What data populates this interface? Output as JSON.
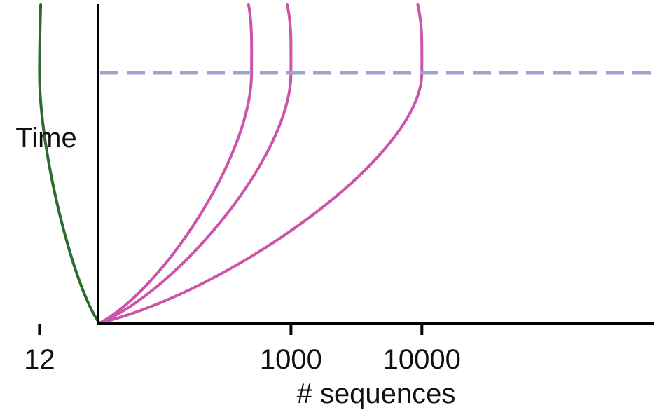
{
  "chart_data": {
    "type": "line",
    "title": "",
    "xlabel": "# sequences",
    "ylabel": "Time",
    "x_scale": "log",
    "x_ticks": [
      {
        "value": 12,
        "label": "12"
      },
      {
        "value": 1000,
        "label": "1000"
      },
      {
        "value": 10000,
        "label": "10000"
      }
    ],
    "threshold": {
      "style": "dashed",
      "color": "#9EA3D0"
    },
    "series": [
      {
        "color": "#2F6B2F",
        "x_at_threshold": 12
      },
      {
        "color": "#CC55AA",
        "x_at_threshold": 500
      },
      {
        "color": "#CC55AA",
        "x_at_threshold": 1000
      },
      {
        "color": "#CC55AA",
        "x_at_threshold": 10000
      }
    ],
    "grid": false,
    "legend": "none"
  }
}
